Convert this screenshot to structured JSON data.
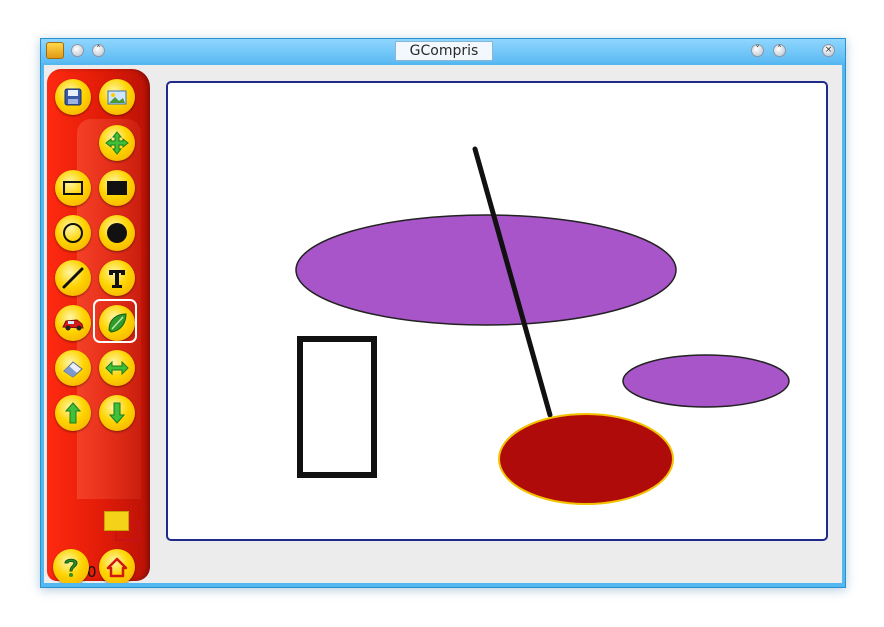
{
  "window": {
    "title": "GCompris",
    "titlebar_icons": [
      "app-icon",
      "minimize-icon",
      "sticky-icon",
      "shade-icon",
      "maximize-icon",
      "close-icon"
    ]
  },
  "toolbar": {
    "tools": [
      {
        "name": "save-icon"
      },
      {
        "name": "load-image-icon"
      },
      {
        "name": "move-icon"
      },
      {
        "name": "empty-rectangle-icon"
      },
      {
        "name": "filled-rectangle-icon"
      },
      {
        "name": "empty-circle-icon"
      },
      {
        "name": "filled-circle-icon"
      },
      {
        "name": "line-icon"
      },
      {
        "name": "text-icon"
      },
      {
        "name": "image-icon"
      },
      {
        "name": "fill-icon",
        "selected": true
      },
      {
        "name": "eraser-icon"
      },
      {
        "name": "flip-icon"
      },
      {
        "name": "raise-icon"
      },
      {
        "name": "lower-icon"
      }
    ],
    "foreground_color": "#f5d21a",
    "background_color": "#c8121a",
    "level": "0",
    "help_icon": "help-icon",
    "home_icon": "home-icon"
  },
  "canvas": {
    "background": "#ffffff",
    "border_color": "#1f2a8a",
    "shapes": [
      {
        "type": "ellipse",
        "fill": "#a855c9",
        "stroke": "#222222"
      },
      {
        "type": "ellipse",
        "fill": "#a855c9",
        "stroke": "#222222"
      },
      {
        "type": "ellipse",
        "fill": "#b00b0b",
        "stroke": "#f2c200"
      },
      {
        "type": "rectangle",
        "fill": "none",
        "stroke": "#111111"
      },
      {
        "type": "line",
        "stroke": "#111111"
      }
    ]
  }
}
